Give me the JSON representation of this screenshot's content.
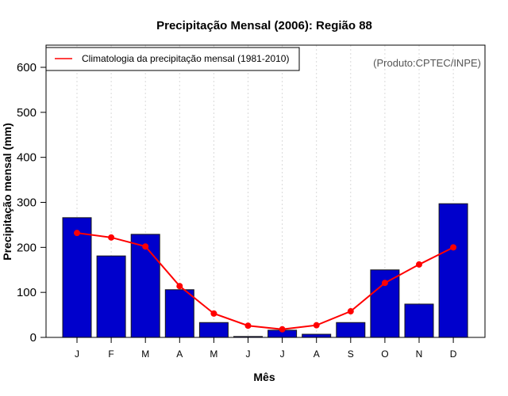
{
  "chart_data": {
    "type": "bar",
    "title": "Precipitação Mensal (2006): Região 88",
    "xlabel": "Mês",
    "ylabel": "Precipitação mensal (mm)",
    "ylim": [
      0,
      650
    ],
    "yticks": [
      0,
      100,
      200,
      300,
      400,
      500,
      600
    ],
    "grid": "vertical dashed at categories",
    "categories": [
      "J",
      "F",
      "M",
      "A",
      "M",
      "J",
      "J",
      "A",
      "S",
      "O",
      "N",
      "D"
    ],
    "series": [
      {
        "name": "Precipitação mensal 2006",
        "type": "bar",
        "color": "#0000CC",
        "values": [
          266,
          181,
          229,
          106,
          33,
          2,
          16,
          7,
          33,
          150,
          74,
          297
        ]
      },
      {
        "name": "Climatologia da precipitação mensal (1981-2010)",
        "type": "line",
        "color": "#FF0000",
        "values": [
          232,
          222,
          202,
          114,
          53,
          26,
          18,
          27,
          58,
          121,
          162,
          200
        ]
      }
    ],
    "legend": {
      "position": "top-left",
      "entries": [
        "Climatologia da precipitação mensal (1981-2010)"
      ]
    },
    "annotation": "(Produto:CPTEC/INPE)"
  }
}
